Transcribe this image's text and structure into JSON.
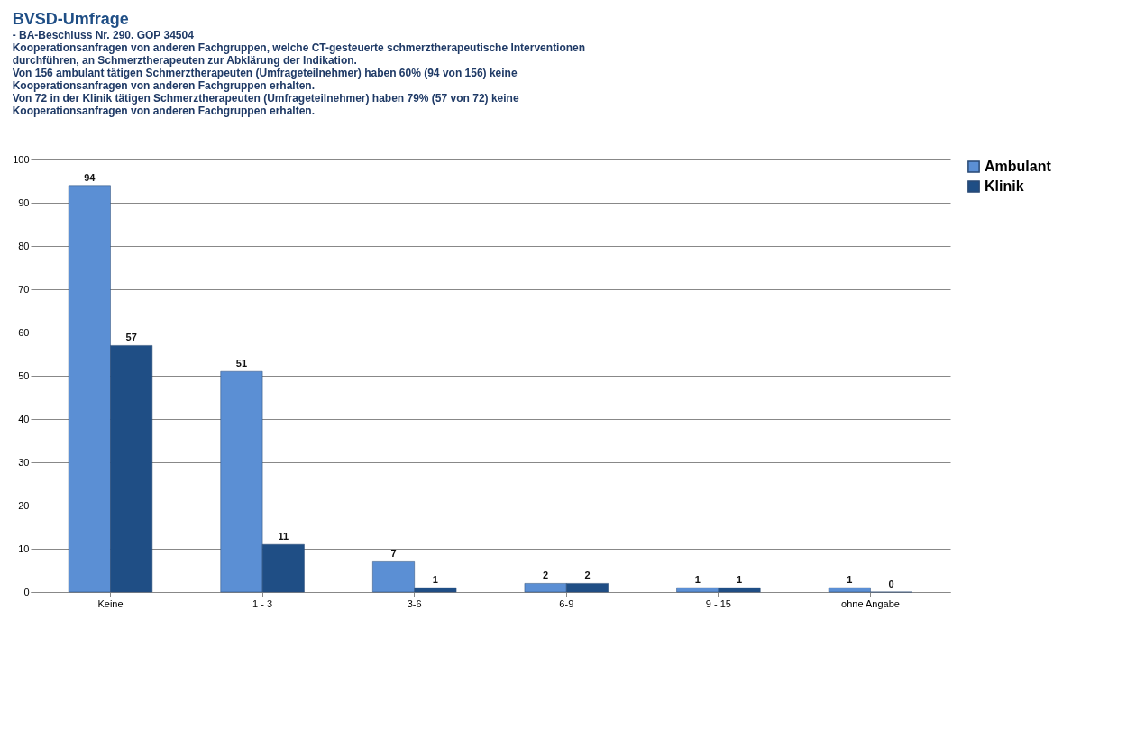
{
  "chart_data": {
    "type": "bar",
    "title": "BVSD-Umfrage",
    "subtitle": "- BA-Beschluss Nr. 290. GOP 34504",
    "annotations": [
      "Kooperationsanfragen von anderen Fachgruppen, welche CT-gesteuerte schmerztherapeutische Interventionen durchführen, an Schmerztherapeuten zur Abklärung der Indikation.",
      "Von 156 ambulant tätigen Schmerztherapeuten (Umfrageteilnehmer) haben 60% (94 von 156) keine Kooperationsanfragen von anderen Fachgruppen erhalten.",
      "Von 72 in der Klinik tätigen Schmerztherapeuten (Umfrageteilnehmer) haben 79% (57 von 72) keine Kooperationsanfragen von anderen Fachgruppen erhalten."
    ],
    "categories": [
      "Keine",
      "1 - 3",
      "3-6",
      "6-9",
      "9 - 15",
      "ohne Angabe"
    ],
    "series": [
      {
        "name": "Ambulant",
        "color": "#5b8fd4",
        "values": [
          94,
          51,
          7,
          2,
          1,
          1
        ]
      },
      {
        "name": "Klinik",
        "color": "#1f4e85",
        "values": [
          57,
          11,
          1,
          2,
          1,
          0
        ]
      }
    ],
    "ylim": [
      0,
      100
    ],
    "yticks": [
      0,
      10,
      20,
      30,
      40,
      50,
      60,
      70,
      80,
      90,
      100
    ],
    "grid": "y",
    "legend": "right",
    "data_labels": true
  }
}
